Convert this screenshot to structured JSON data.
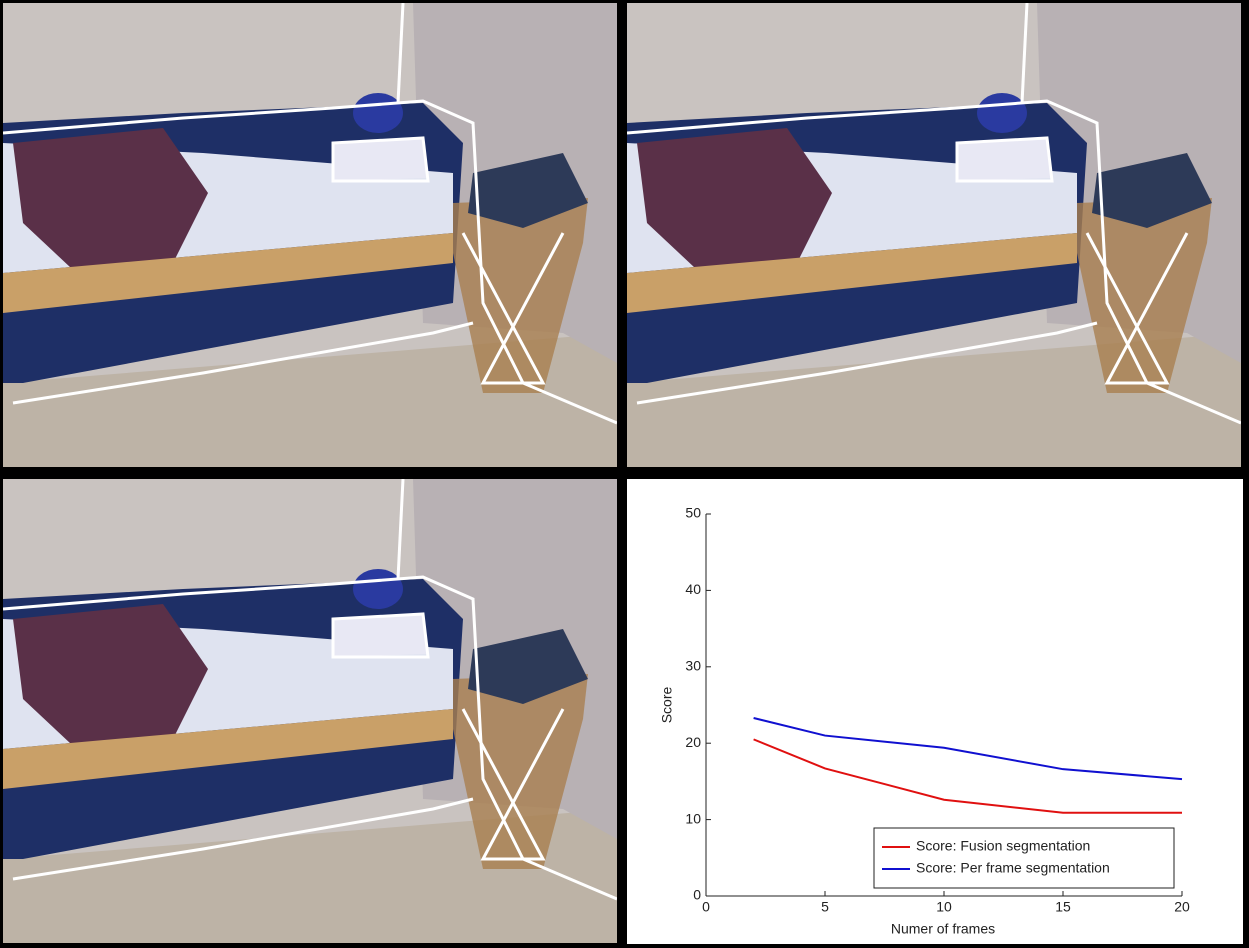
{
  "chart_data": {
    "type": "line",
    "x": [
      2,
      5,
      10,
      15,
      20
    ],
    "series": [
      {
        "name": "Score: Fusion segmentation",
        "color": "#e01010",
        "values": [
          20.5,
          16.7,
          12.6,
          10.9,
          10.9
        ]
      },
      {
        "name": "Score: Per frame segmentation",
        "color": "#1010d0",
        "values": [
          23.3,
          21.0,
          19.4,
          16.6,
          15.3
        ]
      }
    ],
    "xlabel": "Numer of frames",
    "ylabel": "Score",
    "xlim": [
      0,
      20
    ],
    "xticks": [
      0,
      5,
      10,
      15,
      20
    ],
    "ylim": [
      0,
      50
    ],
    "yticks": [
      0,
      10,
      20,
      30,
      40,
      50
    ],
    "legend": "lower right"
  }
}
